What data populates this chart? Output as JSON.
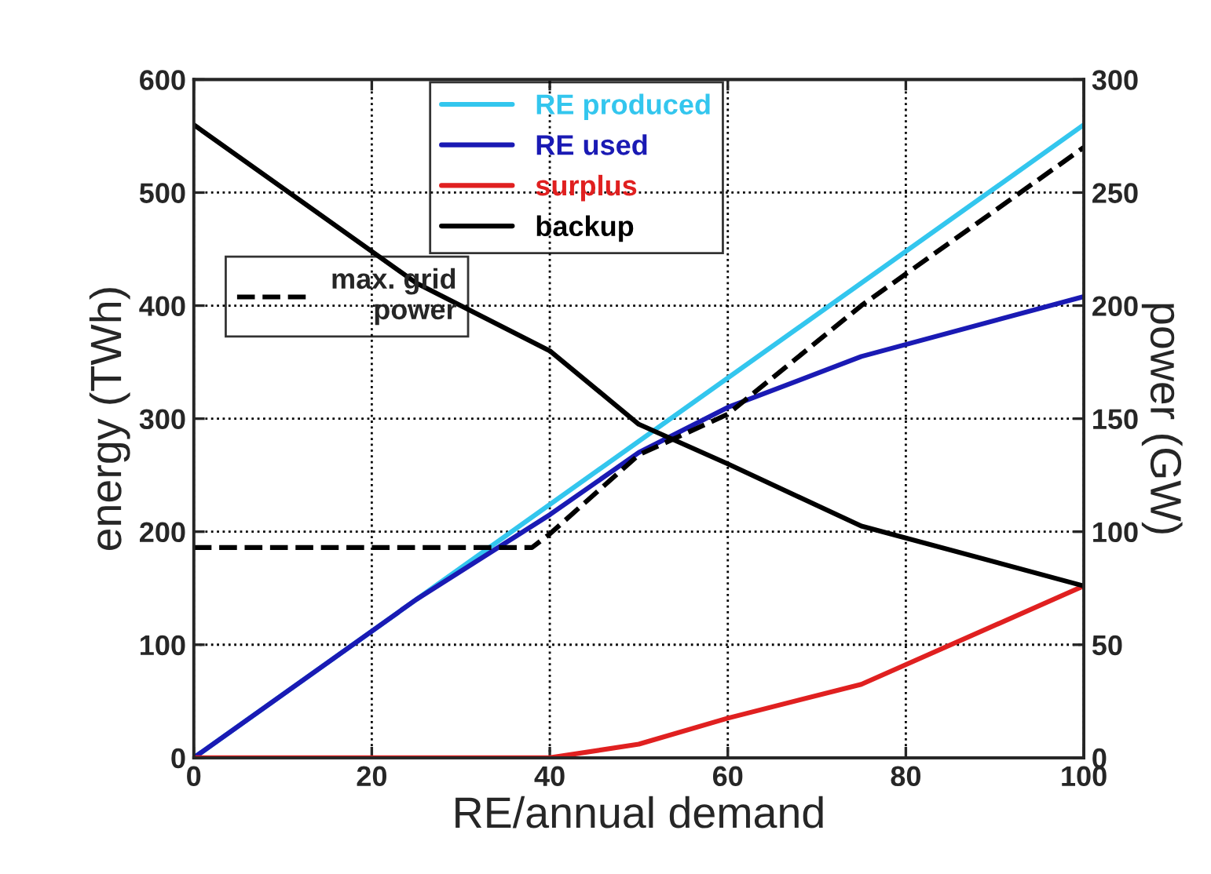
{
  "chart_data": {
    "type": "line",
    "xlabel": "RE/annual demand",
    "ylabel": "energy (TWh)",
    "y2label": "power (GW)",
    "xlim": [
      0,
      100
    ],
    "xticks": [
      0,
      20,
      40,
      60,
      80,
      100
    ],
    "ylim": [
      0,
      600
    ],
    "yticks": [
      0,
      100,
      200,
      300,
      400,
      500,
      600
    ],
    "y2lim": [
      0,
      300
    ],
    "y2ticks": [
      0,
      50,
      100,
      150,
      200,
      250,
      300
    ],
    "grid": true,
    "legend": "top",
    "line_style": "solid",
    "marker": "none",
    "series": [
      {
        "name": "RE produced",
        "color": "#33c6ee",
        "x": [
          0,
          100
        ],
        "values": [
          0,
          560
        ]
      },
      {
        "name": "RE used",
        "color": "#1a1ab4",
        "x": [
          0,
          25,
          40,
          50,
          60,
          75,
          100
        ],
        "values": [
          0,
          140,
          215,
          270,
          310,
          355,
          408
        ]
      },
      {
        "name": "surplus",
        "color": "#e02020",
        "x": [
          0,
          40,
          50,
          60,
          75,
          100
        ],
        "values": [
          0,
          0,
          12,
          35,
          65,
          152
        ]
      },
      {
        "name": "backup",
        "color": "#000000",
        "x": [
          0,
          25,
          40,
          50,
          60,
          75,
          100
        ],
        "values": [
          560,
          420,
          360,
          295,
          260,
          205,
          152
        ]
      },
      {
        "name": "max. grid\npower",
        "color": "#000000",
        "axis": "y2",
        "line_style": "dashed",
        "x": [
          0,
          38,
          40,
          50,
          60,
          75,
          100
        ],
        "values": [
          93,
          93,
          99,
          134,
          152,
          200,
          270
        ]
      }
    ]
  }
}
